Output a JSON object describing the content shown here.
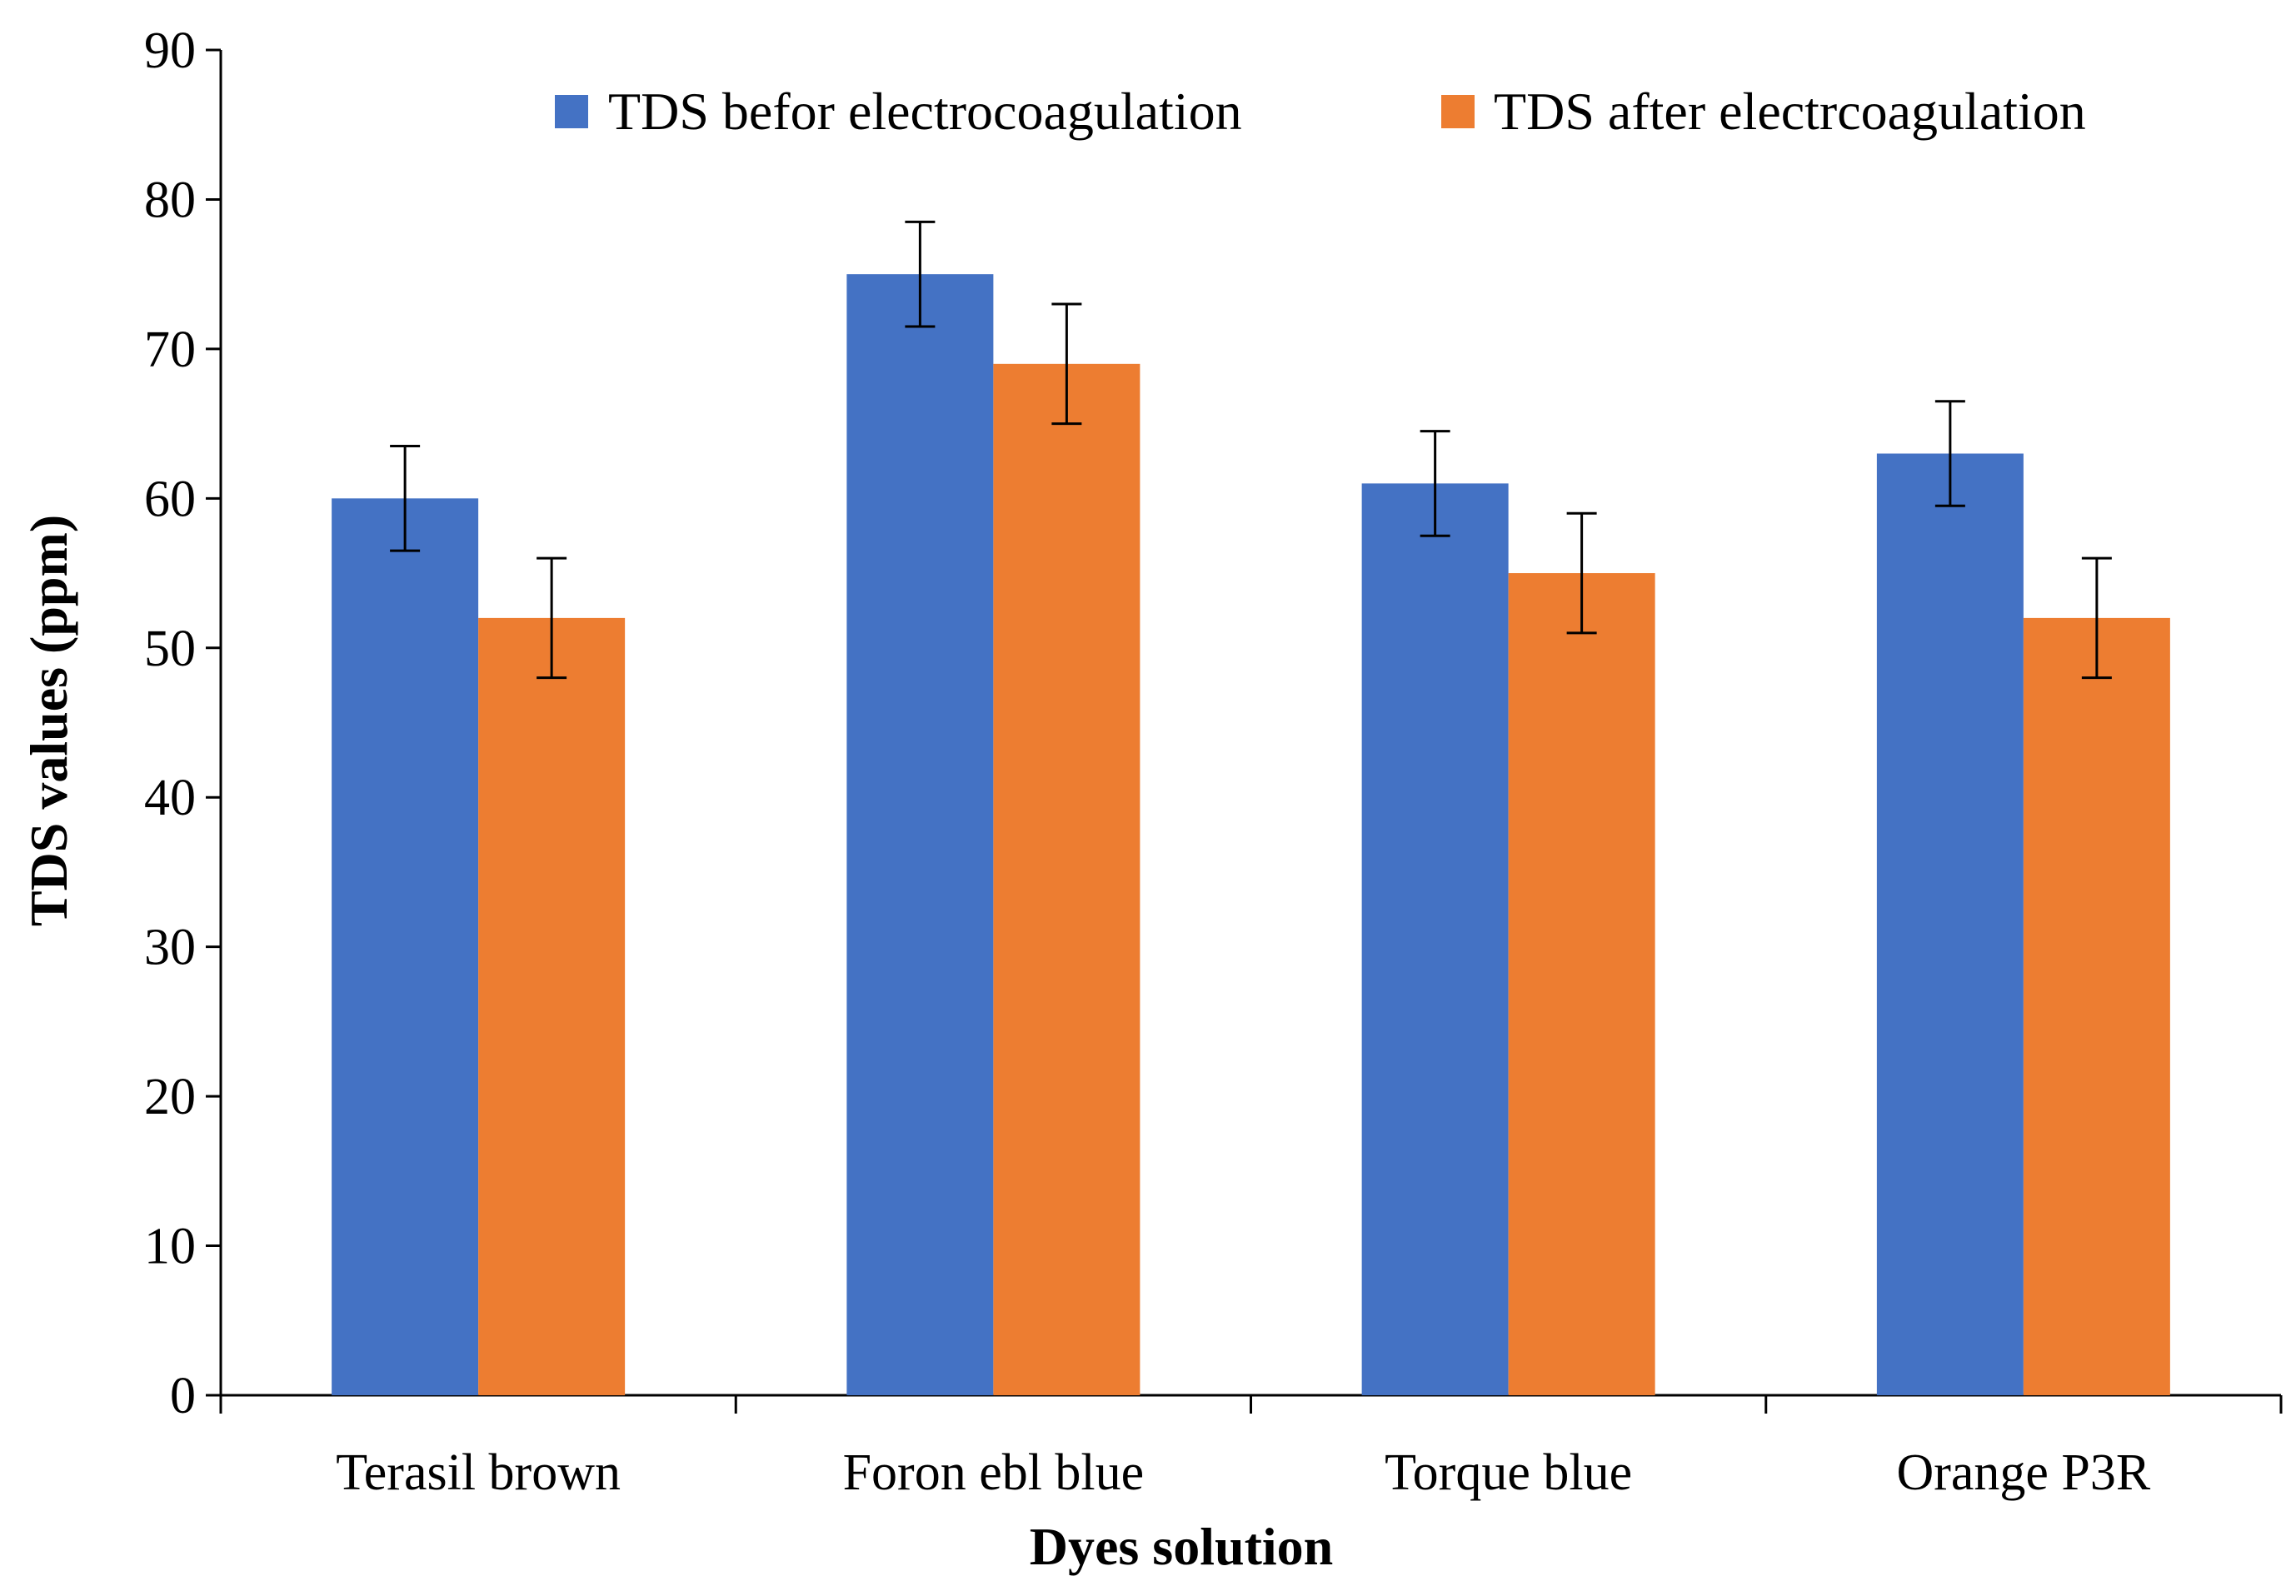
{
  "chart_data": {
    "type": "bar",
    "title": "",
    "xlabel": "Dyes solution",
    "ylabel": "TDS values (ppm)",
    "ylim": [
      0,
      90
    ],
    "yticks": [
      0,
      10,
      20,
      30,
      40,
      50,
      60,
      70,
      80,
      90
    ],
    "grid": false,
    "legend_position": "top-right",
    "categories": [
      "Terasil brown",
      "Foron ebl blue",
      "Torque blue",
      "Orange P3R"
    ],
    "series": [
      {
        "name": "TDS befor electrocoagulation",
        "color": "#4472C4",
        "values": [
          60,
          75,
          61,
          63
        ],
        "errors": [
          3.5,
          3.5,
          3.5,
          3.5
        ]
      },
      {
        "name": "TDS after electrcoagulation",
        "color": "#ED7D31",
        "values": [
          52,
          69,
          55,
          52
        ],
        "errors": [
          4,
          4,
          4,
          4
        ]
      }
    ]
  }
}
